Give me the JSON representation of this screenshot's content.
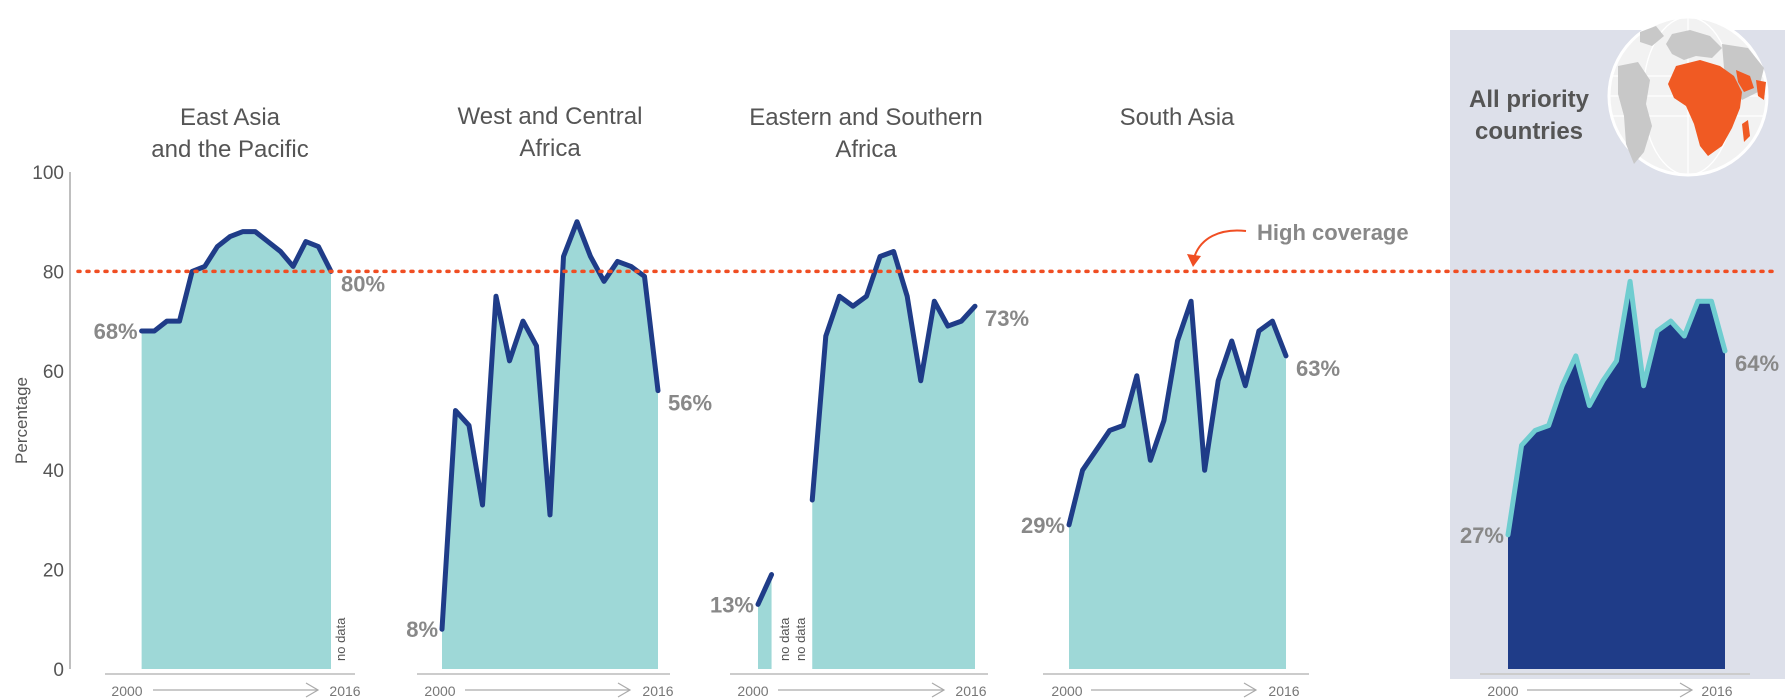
{
  "chart_data": {
    "type": "area",
    "ylabel": "Percentage",
    "ylim": [
      0,
      100
    ],
    "yticks": [
      "0",
      "20",
      "40",
      "60",
      "80",
      "100"
    ],
    "threshold": {
      "value": 80,
      "label": "High coverage",
      "color": "#f04e23"
    },
    "colors": {
      "area": "#9ed8d7",
      "line": "#1f3c88",
      "highlight_bg": "#dde0ea",
      "highlight_area": "#1f3c88",
      "highlight_line": "#6fcdd0",
      "globe_land": "#f05a23",
      "globe_land_other": "#c8c8c8"
    },
    "panels": [
      {
        "title_lines": [
          "East Asia",
          "and the Pacific"
        ],
        "segments": [
          {
            "x": [
              2001,
              2002,
              2003,
              2004,
              2005,
              2006,
              2007,
              2008,
              2009,
              2010,
              2011,
              2012,
              2013,
              2014,
              2015,
              2016
            ],
            "y": [
              68,
              68,
              70,
              70,
              80,
              81,
              85,
              87,
              88,
              88,
              86,
              84,
              81,
              86,
              85,
              80
            ]
          }
        ],
        "start_label": "68%",
        "end_label": "80%",
        "no_data": [
          "no data"
        ],
        "year_start": "2000",
        "year_end": "2016"
      },
      {
        "title_lines": [
          "West and Central",
          "Africa"
        ],
        "segments": [
          {
            "x": [
              2000,
              2001,
              2002,
              2003,
              2004,
              2005,
              2006,
              2007,
              2008,
              2009,
              2010,
              2011,
              2012,
              2013,
              2014,
              2015,
              2016
            ],
            "y": [
              8,
              52,
              49,
              33,
              75,
              62,
              70,
              65,
              31,
              83,
              90,
              83,
              78,
              82,
              81,
              79,
              56
            ]
          }
        ],
        "start_label": "8%",
        "end_label": "56%",
        "no_data": [],
        "year_start": "2000",
        "year_end": "2016"
      },
      {
        "title_lines": [
          "Eastern and Southern",
          "Africa"
        ],
        "segments": [
          {
            "x": [
              2000,
              2001
            ],
            "y": [
              13,
              19
            ]
          },
          {
            "x": [
              2004,
              2005,
              2006,
              2007,
              2008,
              2009,
              2010,
              2011,
              2012,
              2013,
              2014,
              2015,
              2016
            ],
            "y": [
              34,
              67,
              75,
              73,
              75,
              83,
              84,
              75,
              58,
              74,
              69,
              70,
              73
            ]
          }
        ],
        "start_label": "13%",
        "end_label": "73%",
        "no_data": [
          "no data",
          "no data"
        ],
        "year_start": "2000",
        "year_end": "2016"
      },
      {
        "title_lines": [
          "South Asia"
        ],
        "segments": [
          {
            "x": [
              2000,
              2001,
              2002,
              2003,
              2004,
              2005,
              2006,
              2007,
              2008,
              2009,
              2010,
              2011,
              2012,
              2013,
              2014,
              2015,
              2016
            ],
            "y": [
              29,
              40,
              44,
              48,
              49,
              59,
              42,
              50,
              66,
              74,
              40,
              58,
              66,
              57,
              68,
              70,
              63
            ]
          }
        ],
        "start_label": "29%",
        "end_label": "63%",
        "no_data": [],
        "year_start": "2000",
        "year_end": "2016"
      },
      {
        "title_lines": [
          "All priority",
          "countries"
        ],
        "highlight": true,
        "segments": [
          {
            "x": [
              2000,
              2001,
              2002,
              2003,
              2004,
              2005,
              2006,
              2007,
              2008,
              2009,
              2010,
              2011,
              2012,
              2013,
              2014,
              2015,
              2016
            ],
            "y": [
              27,
              45,
              48,
              49,
              57,
              63,
              53,
              58,
              62,
              78,
              57,
              68,
              70,
              67,
              74,
              74,
              64
            ]
          }
        ],
        "start_label": "27%",
        "end_label": "64%",
        "no_data": [],
        "year_start": "2000",
        "year_end": "2016"
      }
    ]
  }
}
